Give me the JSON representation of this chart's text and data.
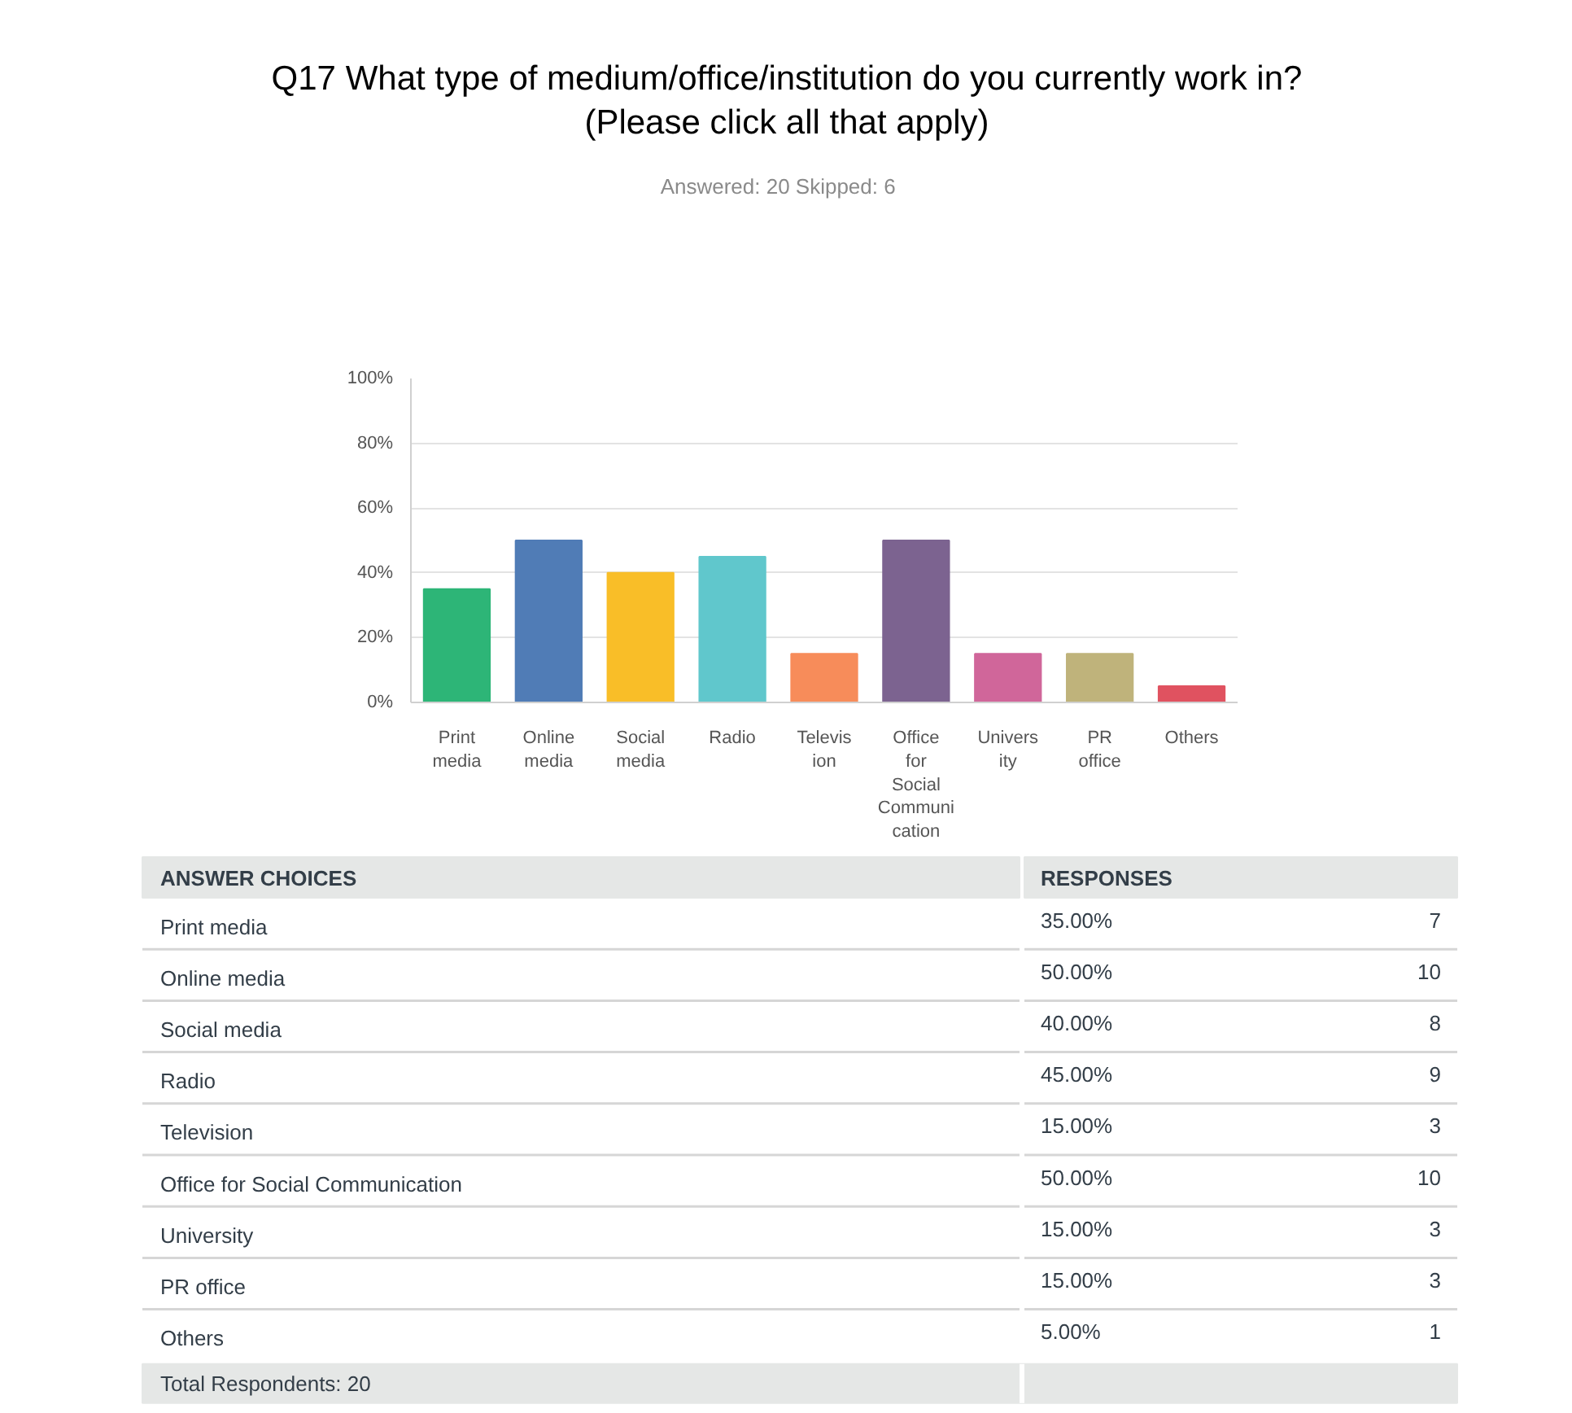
{
  "chart_data": [
    {
      "type": "bar",
      "title": "Q17 What type of medium/office/institution do you currently work in? (Please click all that apply)",
      "subtitle": "Answered: 20    Skipped: 6",
      "categories": [
        "Print media",
        "Online media",
        "Social media",
        "Radio",
        "Television",
        "Office for Social Communication",
        "University",
        "PR office",
        "Others"
      ],
      "values": [
        35,
        50,
        40,
        45,
        15,
        50,
        15,
        15,
        5
      ],
      "colors": [
        "#2db577",
        "#507cb6",
        "#f9be28",
        "#60c7cc",
        "#f78c5a",
        "#7c6390",
        "#d0669a",
        "#bfb37b",
        "#e05260"
      ],
      "ylim": [
        0,
        100
      ],
      "yticks": [
        {
          "value": 0,
          "label": "0%"
        },
        {
          "value": 20,
          "label": "20%"
        },
        {
          "value": 40,
          "label": "40%"
        },
        {
          "value": 60,
          "label": "60%"
        },
        {
          "value": 80,
          "label": "80%"
        },
        {
          "value": 100,
          "label": "100%"
        }
      ],
      "grid": "y"
    },
    {
      "type": "other",
      "annotations": [
        "ANSWER CHOICES",
        "RESPONSES",
        "Print media",
        "35.00%",
        "7",
        "Online media",
        "50.00%",
        "10",
        "Social media",
        "40.00%",
        "8",
        "Radio",
        "45.00%",
        "9",
        "Television",
        "15.00%",
        "3",
        "Office for Social Communication",
        "50.00%",
        "10",
        "University",
        "15.00%",
        "3",
        "PR office",
        "15.00%",
        "3",
        "Others",
        "5.00%",
        "1",
        "Total Respondents: 20"
      ]
    }
  ]
}
